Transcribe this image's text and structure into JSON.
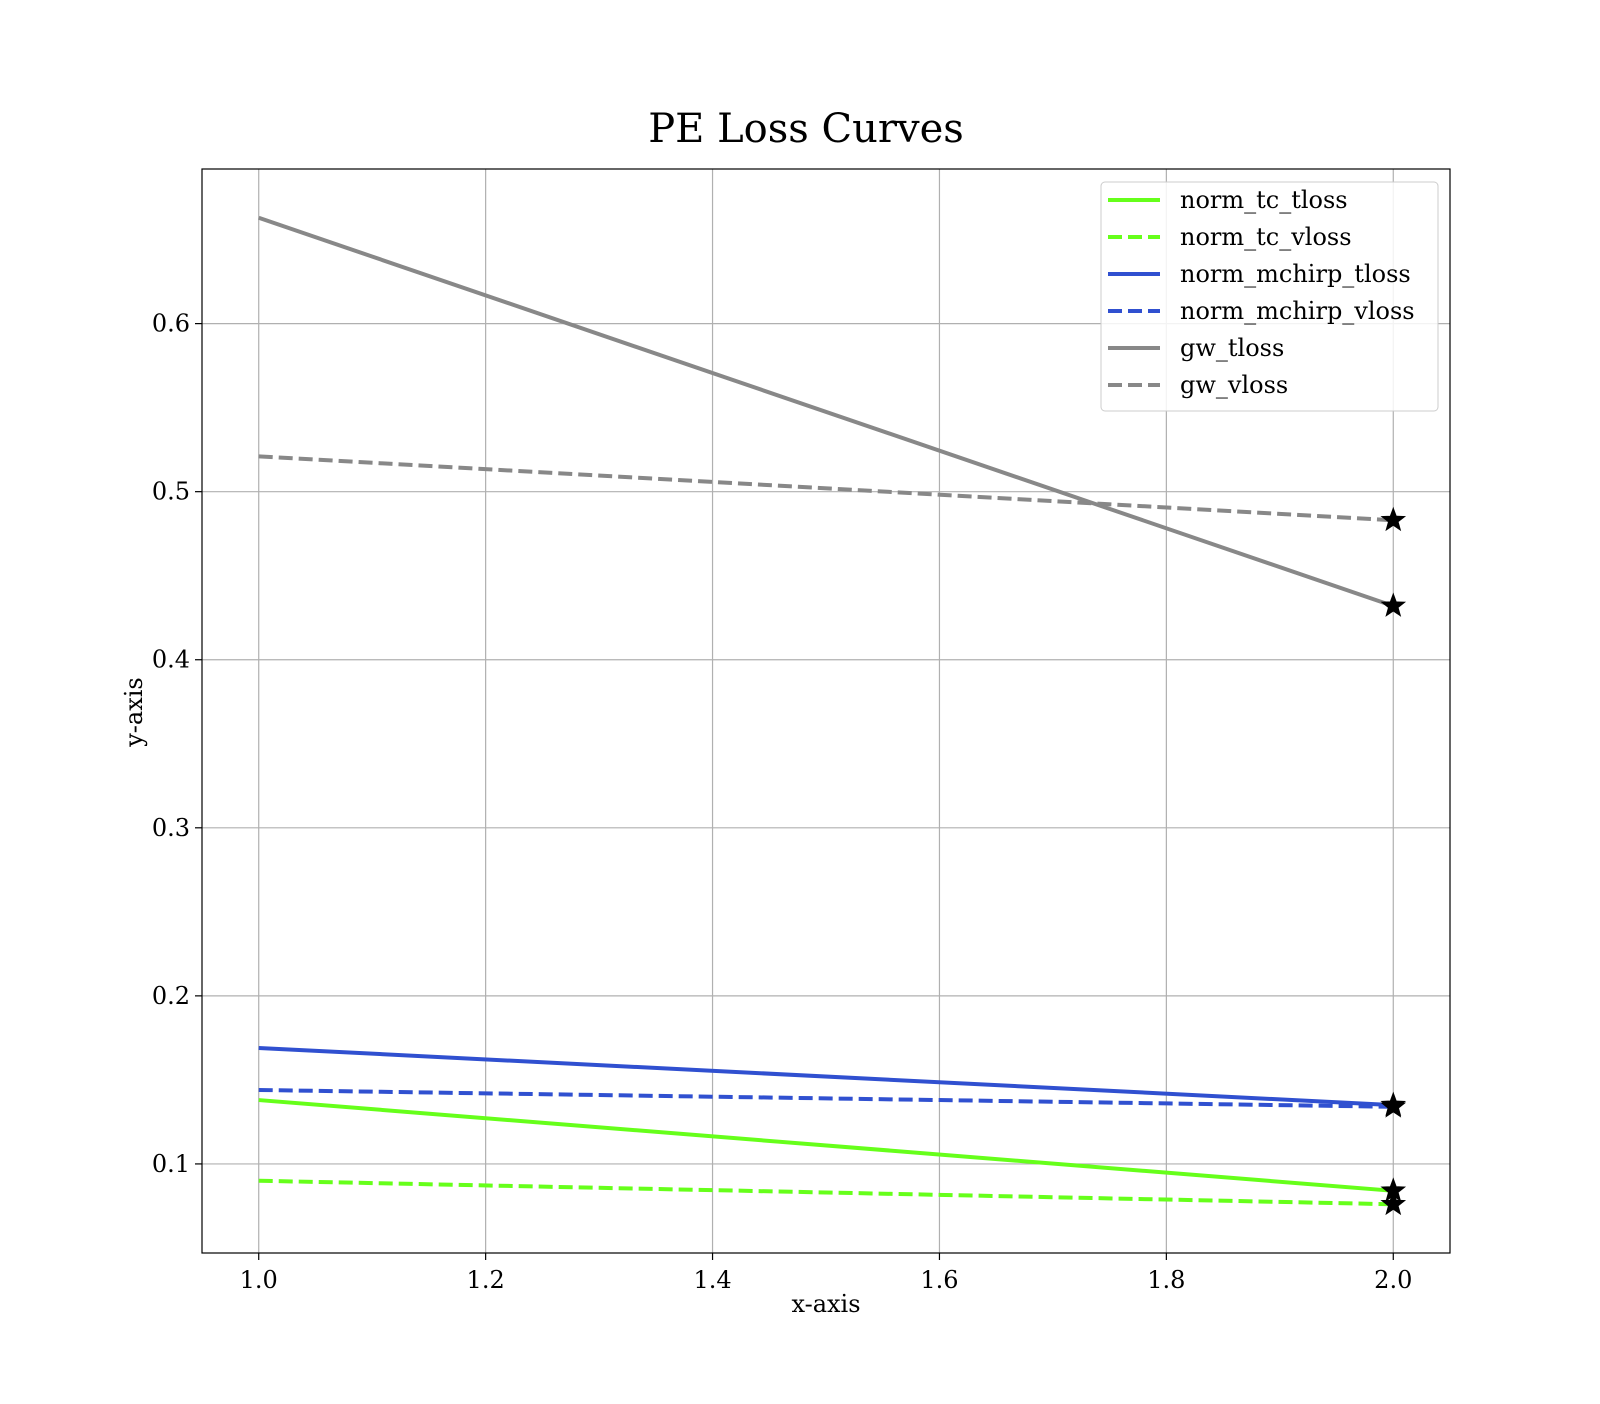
{
  "chart_data": {
    "type": "line",
    "title": "PE Loss Curves",
    "xlabel": "x-axis",
    "ylabel": "y-axis",
    "xlim": [
      0.95,
      2.05
    ],
    "ylim": [
      0.047,
      0.692
    ],
    "x_ticks": [
      1.0,
      1.2,
      1.4,
      1.6,
      1.8,
      2.0
    ],
    "y_ticks": [
      0.1,
      0.2,
      0.3,
      0.4,
      0.5,
      0.6
    ],
    "x_tick_labels": [
      "1.0",
      "1.2",
      "1.4",
      "1.6",
      "1.8",
      "2.0"
    ],
    "y_tick_labels": [
      "0.1",
      "0.2",
      "0.3",
      "0.4",
      "0.5",
      "0.6"
    ],
    "grid": true,
    "legend_position": "top-right",
    "x": [
      1.0,
      2.0
    ],
    "series": [
      {
        "name": "norm_tc_tloss",
        "values": [
          0.138,
          0.084
        ],
        "color": "#66ff1a",
        "dashed": false
      },
      {
        "name": "norm_tc_vloss",
        "values": [
          0.09,
          0.076
        ],
        "color": "#66ff1a",
        "dashed": true
      },
      {
        "name": "norm_mchirp_tloss",
        "values": [
          0.169,
          0.135
        ],
        "color": "#3050d0",
        "dashed": false
      },
      {
        "name": "norm_mchirp_vloss",
        "values": [
          0.144,
          0.134
        ],
        "color": "#3050d0",
        "dashed": true
      },
      {
        "name": "gw_tloss",
        "values": [
          0.663,
          0.432
        ],
        "color": "#888888",
        "dashed": false
      },
      {
        "name": "gw_vloss",
        "values": [
          0.521,
          0.483
        ],
        "color": "#888888",
        "dashed": true
      }
    ],
    "end_marker": "star",
    "end_marker_color": "#000000"
  }
}
